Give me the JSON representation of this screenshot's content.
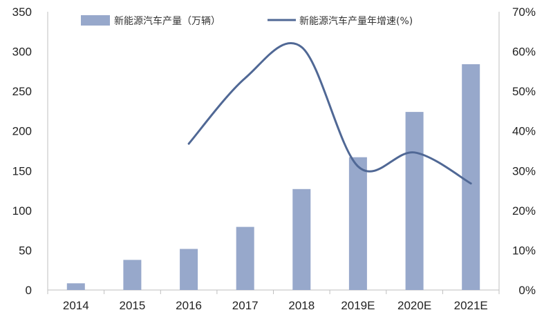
{
  "chart_data": {
    "type": "bar+line",
    "categories": [
      "2014",
      "2015",
      "2016",
      "2017",
      "2018",
      "2019E",
      "2020E",
      "2021E"
    ],
    "series": [
      {
        "name": "新能源汽车产量（万辆）",
        "type": "bar",
        "axis": "left",
        "color": "#97a8cb",
        "values": [
          8.4,
          37.9,
          51.7,
          79.4,
          127,
          167,
          224,
          284
        ]
      },
      {
        "name": "新能源汽车产量年增速(%)",
        "type": "line",
        "axis": "right",
        "color": "#506895",
        "values": [
          null,
          null,
          36.8,
          53.3,
          61.1,
          31.1,
          34.6,
          26.8
        ]
      }
    ],
    "y_left": {
      "range": [
        0,
        350
      ],
      "ticks": [
        "0",
        "50",
        "100",
        "150",
        "200",
        "250",
        "300",
        "350"
      ]
    },
    "y_right": {
      "range": [
        0,
        70
      ],
      "ticks": [
        "0%",
        "10%",
        "20%",
        "30%",
        "40%",
        "50%",
        "60%",
        "70%"
      ]
    },
    "legend": {
      "placement": "top"
    },
    "grid": false
  }
}
